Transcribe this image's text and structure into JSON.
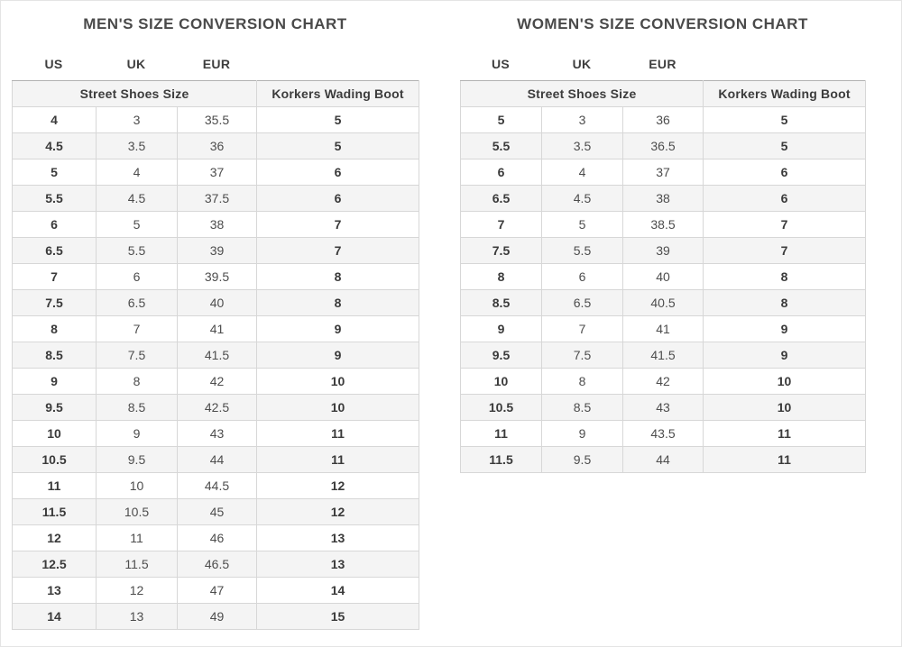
{
  "page": {
    "background": "#ffffff"
  },
  "colors": {
    "title_text": "#4a4a4a",
    "cell_text": "#4d4d4d",
    "bold_cell_text": "#3a3a3a",
    "row_alt_bg": "#f4f4f4",
    "group_header_bg": "#f4f4f4",
    "border": "#d7d7d7",
    "group_header_top_border": "#b2b2b2"
  },
  "chart_data": [
    {
      "type": "table",
      "title": "MEN'S SIZE CONVERSION CHART",
      "column_labels": [
        "US",
        "UK",
        "EUR"
      ],
      "column_groups": [
        {
          "label": "Street Shoes Size",
          "span": 3
        },
        {
          "label": "Korkers Wading Boot",
          "span": 1
        }
      ],
      "columns": [
        "US",
        "UK",
        "EUR",
        "Korkers Wading Boot"
      ],
      "rows": [
        [
          "4",
          "3",
          "35.5",
          "5"
        ],
        [
          "4.5",
          "3.5",
          "36",
          "5"
        ],
        [
          "5",
          "4",
          "37",
          "6"
        ],
        [
          "5.5",
          "4.5",
          "37.5",
          "6"
        ],
        [
          "6",
          "5",
          "38",
          "7"
        ],
        [
          "6.5",
          "5.5",
          "39",
          "7"
        ],
        [
          "7",
          "6",
          "39.5",
          "8"
        ],
        [
          "7.5",
          "6.5",
          "40",
          "8"
        ],
        [
          "8",
          "7",
          "41",
          "9"
        ],
        [
          "8.5",
          "7.5",
          "41.5",
          "9"
        ],
        [
          "9",
          "8",
          "42",
          "10"
        ],
        [
          "9.5",
          "8.5",
          "42.5",
          "10"
        ],
        [
          "10",
          "9",
          "43",
          "11"
        ],
        [
          "10.5",
          "9.5",
          "44",
          "11"
        ],
        [
          "11",
          "10",
          "44.5",
          "12"
        ],
        [
          "11.5",
          "10.5",
          "45",
          "12"
        ],
        [
          "12",
          "11",
          "46",
          "13"
        ],
        [
          "12.5",
          "11.5",
          "46.5",
          "13"
        ],
        [
          "13",
          "12",
          "47",
          "14"
        ],
        [
          "14",
          "13",
          "49",
          "15"
        ]
      ]
    },
    {
      "type": "table",
      "title": "WOMEN'S SIZE CONVERSION CHART",
      "column_labels": [
        "US",
        "UK",
        "EUR"
      ],
      "column_groups": [
        {
          "label": "Street Shoes Size",
          "span": 3
        },
        {
          "label": "Korkers Wading Boot",
          "span": 1
        }
      ],
      "columns": [
        "US",
        "UK",
        "EUR",
        "Korkers Wading Boot"
      ],
      "rows": [
        [
          "5",
          "3",
          "36",
          "5"
        ],
        [
          "5.5",
          "3.5",
          "36.5",
          "5"
        ],
        [
          "6",
          "4",
          "37",
          "6"
        ],
        [
          "6.5",
          "4.5",
          "38",
          "6"
        ],
        [
          "7",
          "5",
          "38.5",
          "7"
        ],
        [
          "7.5",
          "5.5",
          "39",
          "7"
        ],
        [
          "8",
          "6",
          "40",
          "8"
        ],
        [
          "8.5",
          "6.5",
          "40.5",
          "8"
        ],
        [
          "9",
          "7",
          "41",
          "9"
        ],
        [
          "9.5",
          "7.5",
          "41.5",
          "9"
        ],
        [
          "10",
          "8",
          "42",
          "10"
        ],
        [
          "10.5",
          "8.5",
          "43",
          "10"
        ],
        [
          "11",
          "9",
          "43.5",
          "11"
        ],
        [
          "11.5",
          "9.5",
          "44",
          "11"
        ]
      ]
    }
  ]
}
